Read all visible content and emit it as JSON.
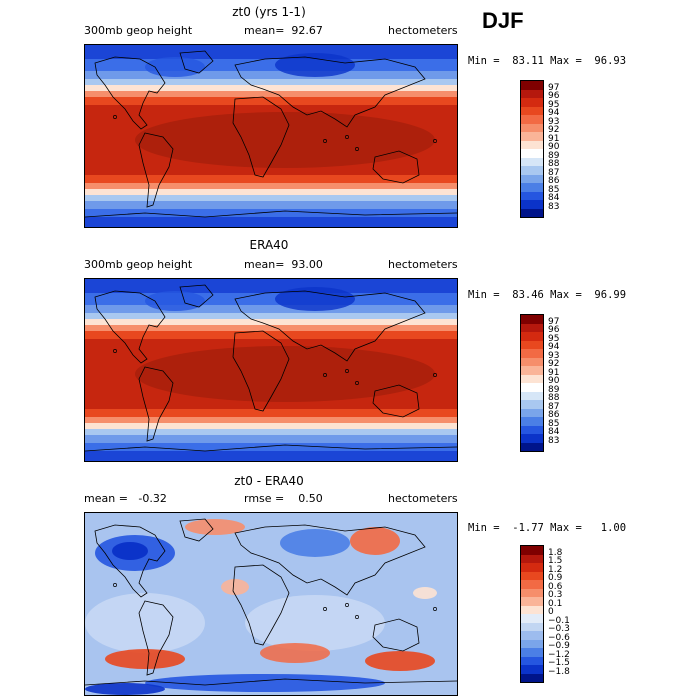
{
  "season": "DJF",
  "panels": [
    {
      "title": "zt0 (yrs 1-1)",
      "left_label": "300mb geop height",
      "mid_label": "mean=  92.67",
      "right_label": "hectometers",
      "minmax": "Min =  83.11 Max =  96.93",
      "colorbar": {
        "labels": [
          "97",
          "96",
          "95",
          "94",
          "93",
          "92",
          "91",
          "90",
          "89",
          "88",
          "87",
          "86",
          "85",
          "84",
          "83"
        ],
        "colors": [
          "#7f0000",
          "#b5180d",
          "#d42a10",
          "#e8481f",
          "#f26a44",
          "#f68e6b",
          "#fab498",
          "#fde3d3",
          "#ffffff",
          "#d6e6f7",
          "#a9c8f0",
          "#7aa5ea",
          "#4b7fe6",
          "#2556e0",
          "#0b33c9",
          "#00148a"
        ]
      },
      "map_kind": "zt0"
    },
    {
      "title": "ERA40",
      "left_label": "300mb geop height",
      "mid_label": "mean=  93.00",
      "right_label": "hectometers",
      "minmax": "Min =  83.46 Max =  96.99",
      "colorbar": {
        "labels": [
          "97",
          "96",
          "95",
          "94",
          "93",
          "92",
          "91",
          "90",
          "89",
          "88",
          "87",
          "86",
          "85",
          "84",
          "83"
        ],
        "colors": [
          "#7f0000",
          "#b5180d",
          "#d42a10",
          "#e8481f",
          "#f26a44",
          "#f68e6b",
          "#fab498",
          "#fde3d3",
          "#ffffff",
          "#d6e6f7",
          "#a9c8f0",
          "#7aa5ea",
          "#4b7fe6",
          "#2556e0",
          "#0b33c9",
          "#00148a"
        ]
      },
      "map_kind": "era"
    },
    {
      "title": "zt0 - ERA40",
      "left_label": "mean =   -0.32",
      "mid_label": "rmse =    0.50",
      "right_label": "hectometers",
      "minmax": "Min =  -1.77 Max =   1.00",
      "colorbar": {
        "labels": [
          "1.8",
          "1.5",
          "1.2",
          "0.9",
          "0.6",
          "0.3",
          "0.1",
          "0",
          "−0.1",
          "−0.3",
          "−0.6",
          "−0.9",
          "−1.2",
          "−1.5",
          "−1.8"
        ],
        "colors": [
          "#7f0000",
          "#b5180d",
          "#d42a10",
          "#e8481f",
          "#f26a44",
          "#f68e6b",
          "#fab498",
          "#fde3d3",
          "#e3ecf8",
          "#c2d6f2",
          "#9dbcee",
          "#7aa5ea",
          "#4b7fe6",
          "#2556e0",
          "#0b33c9",
          "#00148a"
        ]
      },
      "map_kind": "diff"
    }
  ]
}
